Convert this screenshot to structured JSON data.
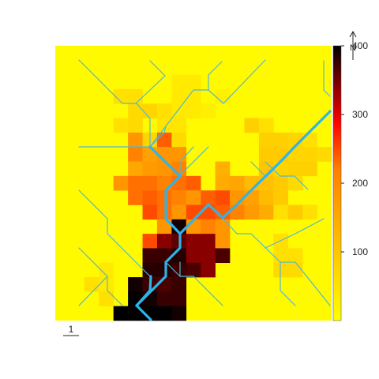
{
  "legend": {
    "ticks": [
      {
        "value": 100,
        "label": "100"
      },
      {
        "value": 200,
        "label": "200"
      },
      {
        "value": 300,
        "label": "300"
      },
      {
        "value": 400,
        "label": "400"
      }
    ],
    "range": [
      0,
      400
    ],
    "colors": {
      "low": "#ffff00",
      "mid": "#ff0000",
      "high": "#000000"
    }
  },
  "north_arrow": {
    "label": "N"
  },
  "scale_bar": {
    "label": "1"
  },
  "raster": {
    "rows": 19,
    "cols": 19,
    "background": 10,
    "cells": [
      [
        2,
        8,
        40
      ],
      [
        2,
        9,
        40
      ],
      [
        3,
        4,
        60
      ],
      [
        3,
        5,
        60
      ],
      [
        3,
        8,
        40
      ],
      [
        3,
        9,
        40
      ],
      [
        3,
        11,
        30
      ],
      [
        4,
        5,
        70
      ],
      [
        4,
        6,
        80
      ],
      [
        4,
        7,
        60
      ],
      [
        4,
        8,
        40
      ],
      [
        4,
        9,
        40
      ],
      [
        4,
        10,
        30
      ],
      [
        5,
        4,
        60
      ],
      [
        5,
        5,
        70
      ],
      [
        5,
        7,
        50
      ],
      [
        5,
        8,
        50
      ],
      [
        5,
        13,
        90
      ],
      [
        5,
        14,
        60
      ],
      [
        6,
        5,
        200
      ],
      [
        6,
        6,
        80
      ],
      [
        6,
        7,
        230
      ],
      [
        6,
        8,
        70
      ],
      [
        6,
        14,
        90
      ],
      [
        6,
        15,
        90
      ],
      [
        6,
        16,
        80
      ],
      [
        6,
        17,
        60
      ],
      [
        7,
        5,
        210
      ],
      [
        7,
        6,
        180
      ],
      [
        7,
        7,
        200
      ],
      [
        7,
        8,
        200
      ],
      [
        7,
        14,
        100
      ],
      [
        7,
        15,
        100
      ],
      [
        7,
        16,
        80
      ],
      [
        7,
        17,
        80
      ],
      [
        7,
        18,
        70
      ],
      [
        8,
        5,
        170
      ],
      [
        8,
        6,
        190
      ],
      [
        8,
        7,
        200
      ],
      [
        8,
        8,
        210
      ],
      [
        8,
        11,
        150
      ],
      [
        8,
        14,
        110
      ],
      [
        8,
        15,
        80
      ],
      [
        8,
        16,
        90
      ],
      [
        8,
        17,
        90
      ],
      [
        9,
        4,
        200
      ],
      [
        9,
        5,
        220
      ],
      [
        9,
        6,
        220
      ],
      [
        9,
        7,
        210
      ],
      [
        9,
        8,
        220
      ],
      [
        9,
        9,
        230
      ],
      [
        9,
        11,
        160
      ],
      [
        9,
        12,
        170
      ],
      [
        9,
        13,
        130
      ],
      [
        9,
        14,
        120
      ],
      [
        9,
        15,
        100
      ],
      [
        9,
        16,
        70
      ],
      [
        10,
        5,
        220
      ],
      [
        10,
        6,
        230
      ],
      [
        10,
        7,
        220
      ],
      [
        10,
        8,
        210
      ],
      [
        10,
        9,
        200
      ],
      [
        10,
        10,
        230
      ],
      [
        10,
        11,
        240
      ],
      [
        10,
        12,
        200
      ],
      [
        10,
        13,
        180
      ],
      [
        10,
        14,
        130
      ],
      [
        10,
        15,
        100
      ],
      [
        11,
        6,
        240
      ],
      [
        11,
        7,
        220
      ],
      [
        11,
        8,
        200
      ],
      [
        11,
        9,
        240
      ],
      [
        11,
        10,
        240
      ],
      [
        11,
        11,
        230
      ],
      [
        11,
        12,
        210
      ],
      [
        11,
        13,
        190
      ],
      [
        11,
        14,
        160
      ],
      [
        11,
        15,
        60
      ],
      [
        11,
        16,
        100
      ],
      [
        11,
        17,
        60
      ],
      [
        12,
        7,
        200
      ],
      [
        12,
        8,
        390
      ],
      [
        12,
        9,
        200
      ],
      [
        12,
        10,
        210
      ],
      [
        12,
        11,
        200
      ],
      [
        13,
        6,
        240
      ],
      [
        13,
        7,
        330
      ],
      [
        13,
        8,
        350
      ],
      [
        13,
        9,
        330
      ],
      [
        13,
        10,
        330
      ],
      [
        13,
        11,
        200
      ],
      [
        13,
        15,
        60
      ],
      [
        14,
        6,
        370
      ],
      [
        14,
        7,
        370
      ],
      [
        14,
        8,
        380
      ],
      [
        14,
        9,
        330
      ],
      [
        14,
        10,
        330
      ],
      [
        14,
        11,
        360
      ],
      [
        14,
        15,
        60
      ],
      [
        14,
        16,
        60
      ],
      [
        15,
        3,
        40
      ],
      [
        15,
        6,
        380
      ],
      [
        15,
        7,
        380
      ],
      [
        15,
        8,
        370
      ],
      [
        15,
        9,
        360
      ],
      [
        15,
        10,
        330
      ],
      [
        15,
        15,
        70
      ],
      [
        15,
        16,
        70
      ],
      [
        16,
        2,
        60
      ],
      [
        16,
        3,
        40
      ],
      [
        16,
        5,
        390
      ],
      [
        16,
        6,
        370
      ],
      [
        16,
        7,
        360
      ],
      [
        16,
        8,
        370
      ],
      [
        17,
        3,
        60
      ],
      [
        17,
        5,
        400
      ],
      [
        17,
        6,
        390
      ],
      [
        17,
        7,
        370
      ],
      [
        17,
        8,
        370
      ],
      [
        18,
        4,
        400
      ],
      [
        18,
        5,
        400
      ],
      [
        18,
        6,
        400
      ],
      [
        18,
        7,
        400
      ],
      [
        18,
        8,
        390
      ]
    ]
  },
  "streams": [
    {
      "width": 1.2,
      "points": [
        [
          100,
          76
        ],
        [
          155,
          131
        ],
        [
          173,
          131
        ],
        [
          190,
          150
        ],
        [
          190,
          186
        ]
      ]
    },
    {
      "width": 1.2,
      "points": [
        [
          190,
          77
        ],
        [
          209,
          96
        ],
        [
          172,
          131
        ]
      ]
    },
    {
      "width": 1.2,
      "points": [
        [
          190,
          186
        ],
        [
          208,
          168
        ],
        [
          210,
          160
        ]
      ]
    },
    {
      "width": 1.2,
      "points": [
        [
          100,
          186
        ],
        [
          190,
          186
        ]
      ]
    },
    {
      "width": 1.2,
      "points": [
        [
          190,
          186
        ],
        [
          245,
          114
        ],
        [
          264,
          114
        ],
        [
          283,
          131
        ],
        [
          336,
          76
        ]
      ]
    },
    {
      "width": 1.2,
      "points": [
        [
          264,
          114
        ],
        [
          264,
          95
        ],
        [
          281,
          78
        ]
      ]
    },
    {
      "width": 1.2,
      "points": [
        [
          228,
          222
        ],
        [
          264,
          186
        ]
      ]
    },
    {
      "width": 1.2,
      "points": [
        [
          228,
          222
        ],
        [
          228,
          205
        ],
        [
          245,
          186
        ]
      ]
    },
    {
      "width": 1.2,
      "points": [
        [
          100,
          241
        ],
        [
          136,
          277
        ],
        [
          136,
          296
        ],
        [
          190,
          350
        ]
      ]
    },
    {
      "width": 1.2,
      "points": [
        [
          100,
          314
        ],
        [
          136,
          350
        ],
        [
          136,
          368
        ],
        [
          155,
          387
        ]
      ]
    },
    {
      "width": 1.2,
      "points": [
        [
          100,
          387
        ],
        [
          136,
          350
        ]
      ]
    },
    {
      "width": 1.2,
      "points": [
        [
          282,
          276
        ],
        [
          300,
          296
        ],
        [
          318,
          296
        ],
        [
          355,
          332
        ],
        [
          355,
          368
        ],
        [
          374,
          387
        ]
      ]
    },
    {
      "width": 1.2,
      "points": [
        [
          355,
          332
        ],
        [
          374,
          332
        ],
        [
          418,
          387
        ]
      ]
    },
    {
      "width": 1.2,
      "points": [
        [
          336,
          314
        ],
        [
          374,
          296
        ],
        [
          410,
          277
        ]
      ]
    },
    {
      "width": 1.2,
      "points": [
        [
          355,
          223
        ],
        [
          373,
          223
        ],
        [
          390,
          240
        ]
      ]
    },
    {
      "width": 1.2,
      "points": [
        [
          318,
          205
        ],
        [
          336,
          223
        ]
      ]
    },
    {
      "width": 1.2,
      "points": [
        [
          336,
          205
        ],
        [
          355,
          223
        ]
      ]
    },
    {
      "width": 1.2,
      "points": [
        [
          410,
          77
        ],
        [
          410,
          114
        ],
        [
          418,
          122
        ]
      ]
    },
    {
      "width": 1.2,
      "points": [
        [
          228,
          332
        ],
        [
          228,
          350
        ],
        [
          245,
          350
        ],
        [
          282,
          387
        ]
      ]
    },
    {
      "width": 1.2,
      "points": [
        [
          210,
          332
        ],
        [
          228,
          350
        ]
      ]
    },
    {
      "width": 3.2,
      "points": [
        [
          190,
          186
        ],
        [
          228,
          223
        ],
        [
          210,
          241
        ],
        [
          210,
          277
        ],
        [
          228,
          296
        ],
        [
          228,
          314
        ],
        [
          210,
          332
        ],
        [
          210,
          350
        ],
        [
          173,
          387
        ],
        [
          191,
          405
        ]
      ]
    },
    {
      "width": 3.2,
      "points": [
        [
          228,
          296
        ],
        [
          264,
          259
        ],
        [
          282,
          276
        ],
        [
          300,
          259
        ],
        [
          318,
          241
        ],
        [
          355,
          205
        ],
        [
          373,
          186
        ],
        [
          418,
          141
        ]
      ]
    },
    {
      "width": 3.2,
      "points": [
        [
          173,
          387
        ],
        [
          190,
          368
        ],
        [
          191,
          350
        ]
      ]
    }
  ]
}
